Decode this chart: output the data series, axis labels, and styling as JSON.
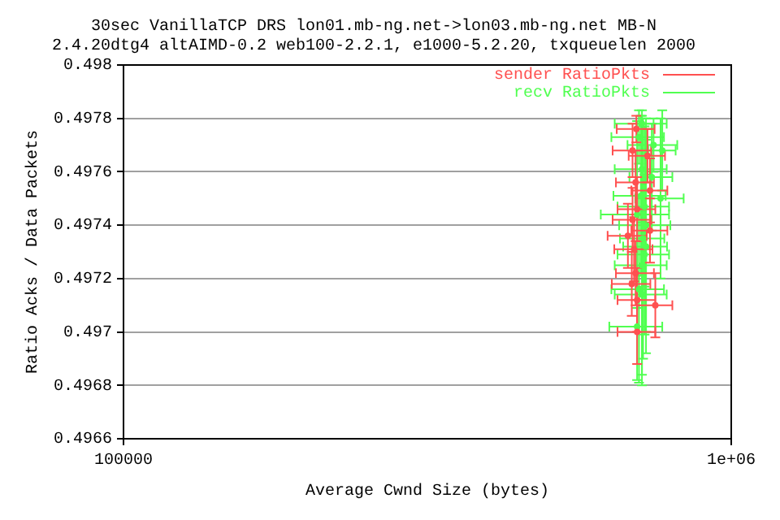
{
  "chart_data": {
    "type": "scatter",
    "title": [
      "30sec VanillaTCP DRS lon01.mb-ng.net->lon03.mb-ng.net MB-N",
      "2.4.20dtg4 altAIMD-0.2 web100-2.2.1, e1000-5.2.20, txqueuelen 2000"
    ],
    "xlabel": "Average Cwnd Size (bytes)",
    "ylabel": "Ratio Acks / Data Packets",
    "log": "x",
    "xlim": [
      100000,
      1000000
    ],
    "xticks": [
      {
        "value": 100000,
        "label": "100000"
      },
      {
        "value": 1000000,
        "label": "1e+06"
      }
    ],
    "ylim": [
      0.4966,
      0.498
    ],
    "yticks": [
      {
        "value": 0.4966,
        "label": "0.4966"
      },
      {
        "value": 0.4968,
        "label": "0.4968"
      },
      {
        "value": 0.497,
        "label": "0.497"
      },
      {
        "value": 0.4972,
        "label": "0.4972"
      },
      {
        "value": 0.4974,
        "label": "0.4974"
      },
      {
        "value": 0.4976,
        "label": "0.4976"
      },
      {
        "value": 0.4978,
        "label": "0.4978"
      },
      {
        "value": 0.498,
        "label": "0.498"
      }
    ],
    "grid": "y",
    "legend": "top right",
    "series": [
      {
        "name": "sender RatioPkts",
        "color": "#ff5050",
        "x": [
          698000,
          688000,
          728000,
          696000,
          735000,
          700000,
          688000,
          735000,
          676000,
          696000,
          692000,
          700000,
          686000,
          700000,
          750000
        ],
        "values": [
          0.49776,
          0.49768,
          0.49766,
          0.49756,
          0.49753,
          0.49746,
          0.49742,
          0.49738,
          0.49736,
          0.49722,
          0.49731,
          0.49712,
          0.49718,
          0.497,
          0.4971
        ],
        "errors": [
          5e-05,
          0.0001,
          0.0001,
          0.00012,
          0.00012,
          0.00012,
          0.00012,
          0.00012,
          0.00012,
          0.00012,
          0.00012,
          0.00012,
          0.00012,
          0.00012,
          0.00012
        ],
        "xerrors": [
          50000,
          50000,
          50000,
          50000,
          50000,
          50000,
          50000,
          50000,
          50000,
          50000,
          50000,
          50000,
          50000,
          50000,
          50000
        ]
      },
      {
        "name": "recv RatioPkts",
        "color": "#50ff50",
        "x": [
          713000,
          705000,
          745000,
          770000,
          713000,
          740000,
          710000,
          720000,
          700000,
          724000,
          720000,
          713000,
          705000,
          713000,
          700000,
          716000,
          765000,
          724000
        ],
        "values": [
          0.49778,
          0.49773,
          0.4977,
          0.49768,
          0.49761,
          0.49758,
          0.49751,
          0.49747,
          0.49744,
          0.4974,
          0.49729,
          0.49725,
          0.49716,
          0.49714,
          0.49702,
          0.49735,
          0.4975,
          0.49732
        ],
        "errors": [
          5e-05,
          0.0001,
          0.0001,
          0.00015,
          0.0002,
          0.0002,
          0.0003,
          0.0003,
          0.00035,
          0.0004,
          0.0003,
          0.00045,
          0.00035,
          0.0003,
          0.0002,
          0.00045,
          0.0003,
          0.0004
        ],
        "xerrors": [
          70000,
          70000,
          70000,
          40000,
          70000,
          60000,
          70000,
          70000,
          90000,
          70000,
          70000,
          70000,
          70000,
          70000,
          70000,
          60000,
          70000,
          60000
        ]
      }
    ]
  }
}
